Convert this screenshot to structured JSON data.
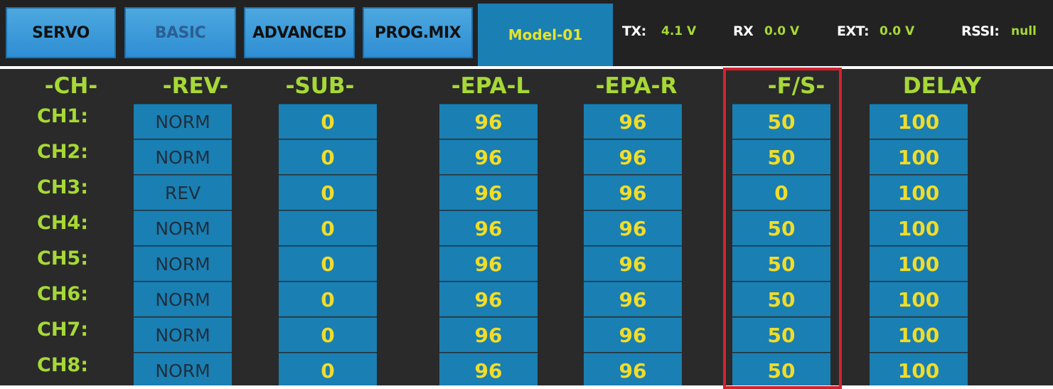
{
  "tabs": {
    "servo": "SERVO",
    "basic": "BASIC",
    "advanced": "ADVANCED",
    "progmix": "PROG.MIX"
  },
  "model": "Model-01",
  "status": {
    "tx_label": "TX:",
    "tx_value": "4.1 V",
    "rx_label": "RX",
    "rx_value": "0.0 V",
    "ext_label": "EXT:",
    "ext_value": "0.0 V",
    "rssi_label": "RSSI:",
    "rssi_value": "null"
  },
  "columns": {
    "ch": "-CH-",
    "rev": "-REV-",
    "sub": "-SUB-",
    "epa_l": "-EPA-L",
    "epa_r": "-EPA-R",
    "fs": "-F/S-",
    "delay": "DELAY"
  },
  "rows": [
    {
      "ch": "CH1:",
      "rev": "NORM",
      "sub": "0",
      "epa_l": "96",
      "epa_r": "96",
      "fs": "50",
      "delay": "100"
    },
    {
      "ch": "CH2:",
      "rev": "NORM",
      "sub": "0",
      "epa_l": "96",
      "epa_r": "96",
      "fs": "50",
      "delay": "100"
    },
    {
      "ch": "CH3:",
      "rev": "REV",
      "sub": "0",
      "epa_l": "96",
      "epa_r": "96",
      "fs": "0",
      "delay": "100"
    },
    {
      "ch": "CH4:",
      "rev": "NORM",
      "sub": "0",
      "epa_l": "96",
      "epa_r": "96",
      "fs": "50",
      "delay": "100"
    },
    {
      "ch": "CH5:",
      "rev": "NORM",
      "sub": "0",
      "epa_l": "96",
      "epa_r": "96",
      "fs": "50",
      "delay": "100"
    },
    {
      "ch": "CH6:",
      "rev": "NORM",
      "sub": "0",
      "epa_l": "96",
      "epa_r": "96",
      "fs": "50",
      "delay": "100"
    },
    {
      "ch": "CH7:",
      "rev": "NORM",
      "sub": "0",
      "epa_l": "96",
      "epa_r": "96",
      "fs": "50",
      "delay": "100"
    },
    {
      "ch": "CH8:",
      "rev": "NORM",
      "sub": "0",
      "epa_l": "96",
      "epa_r": "96",
      "fs": "50",
      "delay": "100"
    }
  ],
  "colors": {
    "accent_green": "#a6d936",
    "value_yellow": "#f1dc2a",
    "cell_blue": "#1a7fb2",
    "highlight_red": "#d5212e"
  }
}
